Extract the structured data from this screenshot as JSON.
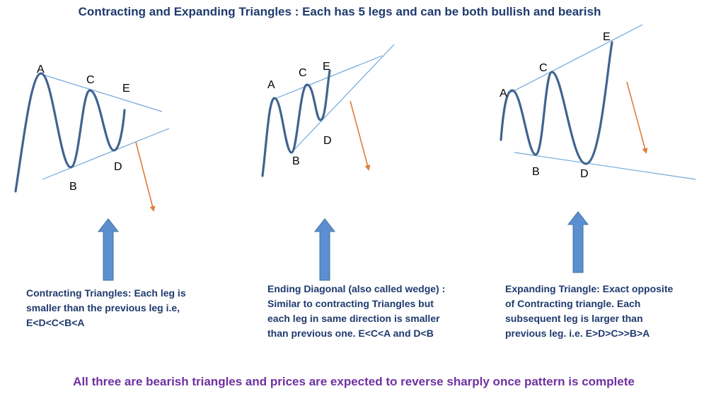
{
  "title": "Contracting and Expanding Triangles : Each has 5 legs and can be both bullish and bearish",
  "footer": "All three are bearish triangles and prices are expected to reverse sharply once pattern is complete",
  "colors": {
    "title": "#1f3a6e",
    "footer": "#7030a0",
    "wave": "#41648f",
    "trendline": "#6fa8dc",
    "reversal_arrow": "#e07b39",
    "up_arrow_fill": "#5b8fd0",
    "up_arrow_stroke": "#41719c"
  },
  "panels": [
    {
      "name": "contracting-triangle",
      "points": {
        "a": "A",
        "b": "B",
        "c": "C",
        "d": "D",
        "e": "E"
      },
      "description": [
        "Contracting Triangles: Each leg is",
        "smaller than the previous leg i.e,",
        "E<D<C<B<A"
      ]
    },
    {
      "name": "ending-diagonal",
      "points": {
        "a": "A",
        "b": "B",
        "c": "C",
        "d": "D",
        "e": "E"
      },
      "description": [
        "Ending Diagonal (also called wedge) :",
        "Similar to contracting Triangles but",
        "each leg in same direction is smaller",
        "than previous one. E<C<A and D<B"
      ]
    },
    {
      "name": "expanding-triangle",
      "points": {
        "a": "A",
        "b": "B",
        "c": "C",
        "d": "D",
        "e": "E"
      },
      "description": [
        "Expanding Triangle: Exact opposite",
        "of Contracting triangle. Each",
        "subsequent leg is larger than",
        "previous leg. i.e. E>D>C>>B>A"
      ]
    }
  ]
}
